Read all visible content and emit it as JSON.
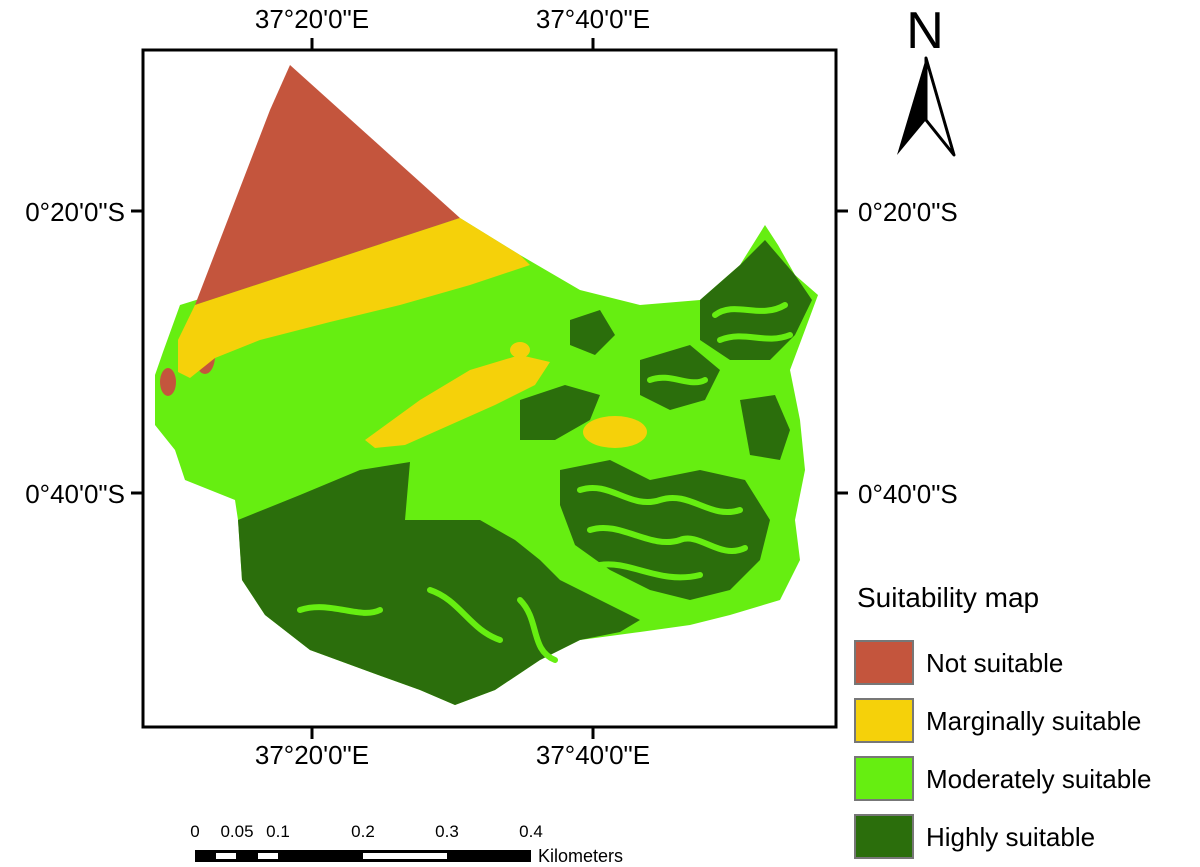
{
  "map": {
    "top_labels": [
      "37°20'0\"E",
      "37°40'0\"E"
    ],
    "bottom_labels": [
      "37°20'0\"E",
      "37°40'0\"E"
    ],
    "left_labels": [
      "0°20'0\"S",
      "0°40'0\"S"
    ],
    "right_labels": [
      "0°20'0\"S",
      "0°40'0\"S"
    ]
  },
  "north_arrow": {
    "letter": "N"
  },
  "legend": {
    "title": "Suitability map",
    "items": [
      {
        "label": "Not suitable",
        "color": "#c4553d"
      },
      {
        "label": "Marginally suitable",
        "color": "#f5d10a"
      },
      {
        "label": "Moderately suitable",
        "color": "#66ee11"
      },
      {
        "label": "Highly suitable",
        "color": "#2b6e0c"
      }
    ]
  },
  "scale_bar": {
    "ticks": [
      "0",
      "0.05",
      "0.1",
      "0.2",
      "0.3",
      "0.4"
    ],
    "unit": "Kilometers"
  }
}
